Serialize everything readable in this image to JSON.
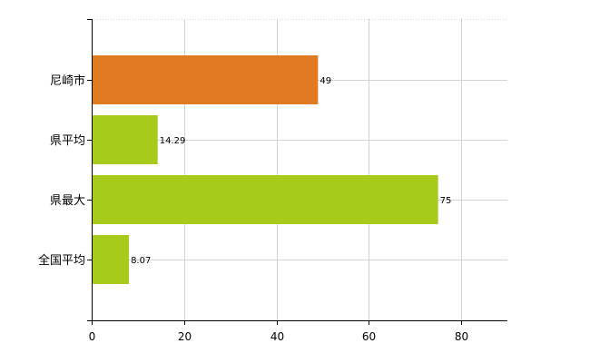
{
  "chart_data": {
    "type": "bar",
    "orientation": "horizontal",
    "categories": [
      "尼崎市",
      "県平均",
      "県最大",
      "全国平均"
    ],
    "values": [
      49,
      14.29,
      75,
      8.07
    ],
    "value_labels": [
      "49",
      "14.29",
      "75",
      "8.07"
    ],
    "xlim": [
      0,
      90
    ],
    "x_ticks": [
      0,
      20,
      40,
      60,
      80
    ],
    "x_tick_labels": [
      "0",
      "20",
      "40",
      "60",
      "80"
    ],
    "grid": true,
    "colors": [
      "#e07b22",
      "#a6cb1a",
      "#a6cb1a",
      "#a6cb1a"
    ],
    "legend": "none"
  }
}
